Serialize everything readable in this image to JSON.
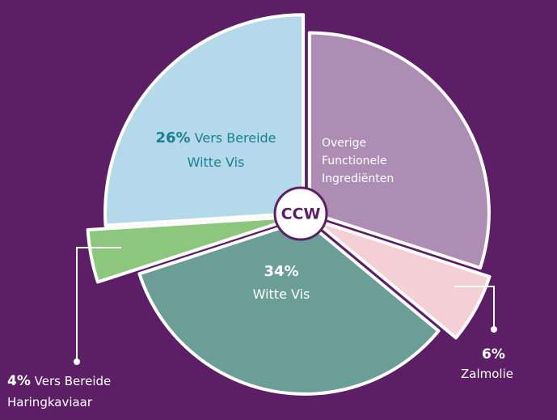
{
  "chart_data": {
    "type": "pie",
    "center_label": "CCW",
    "categories": [
      "Overige Functionele Ingrediënten",
      "Zalmolie",
      "Witte Vis",
      "Vers Bereide Haringkaviaar",
      "Vers Bereide Witte Vis"
    ],
    "values": [
      30,
      6,
      34,
      4,
      26
    ],
    "value_labels": [
      null,
      "6%",
      "34%",
      "4%",
      "26%"
    ],
    "colors": [
      "#ae8db5",
      "#f5cfd6",
      "#6a9e96",
      "#8dc77e",
      "#b4d9ea"
    ]
  }
}
